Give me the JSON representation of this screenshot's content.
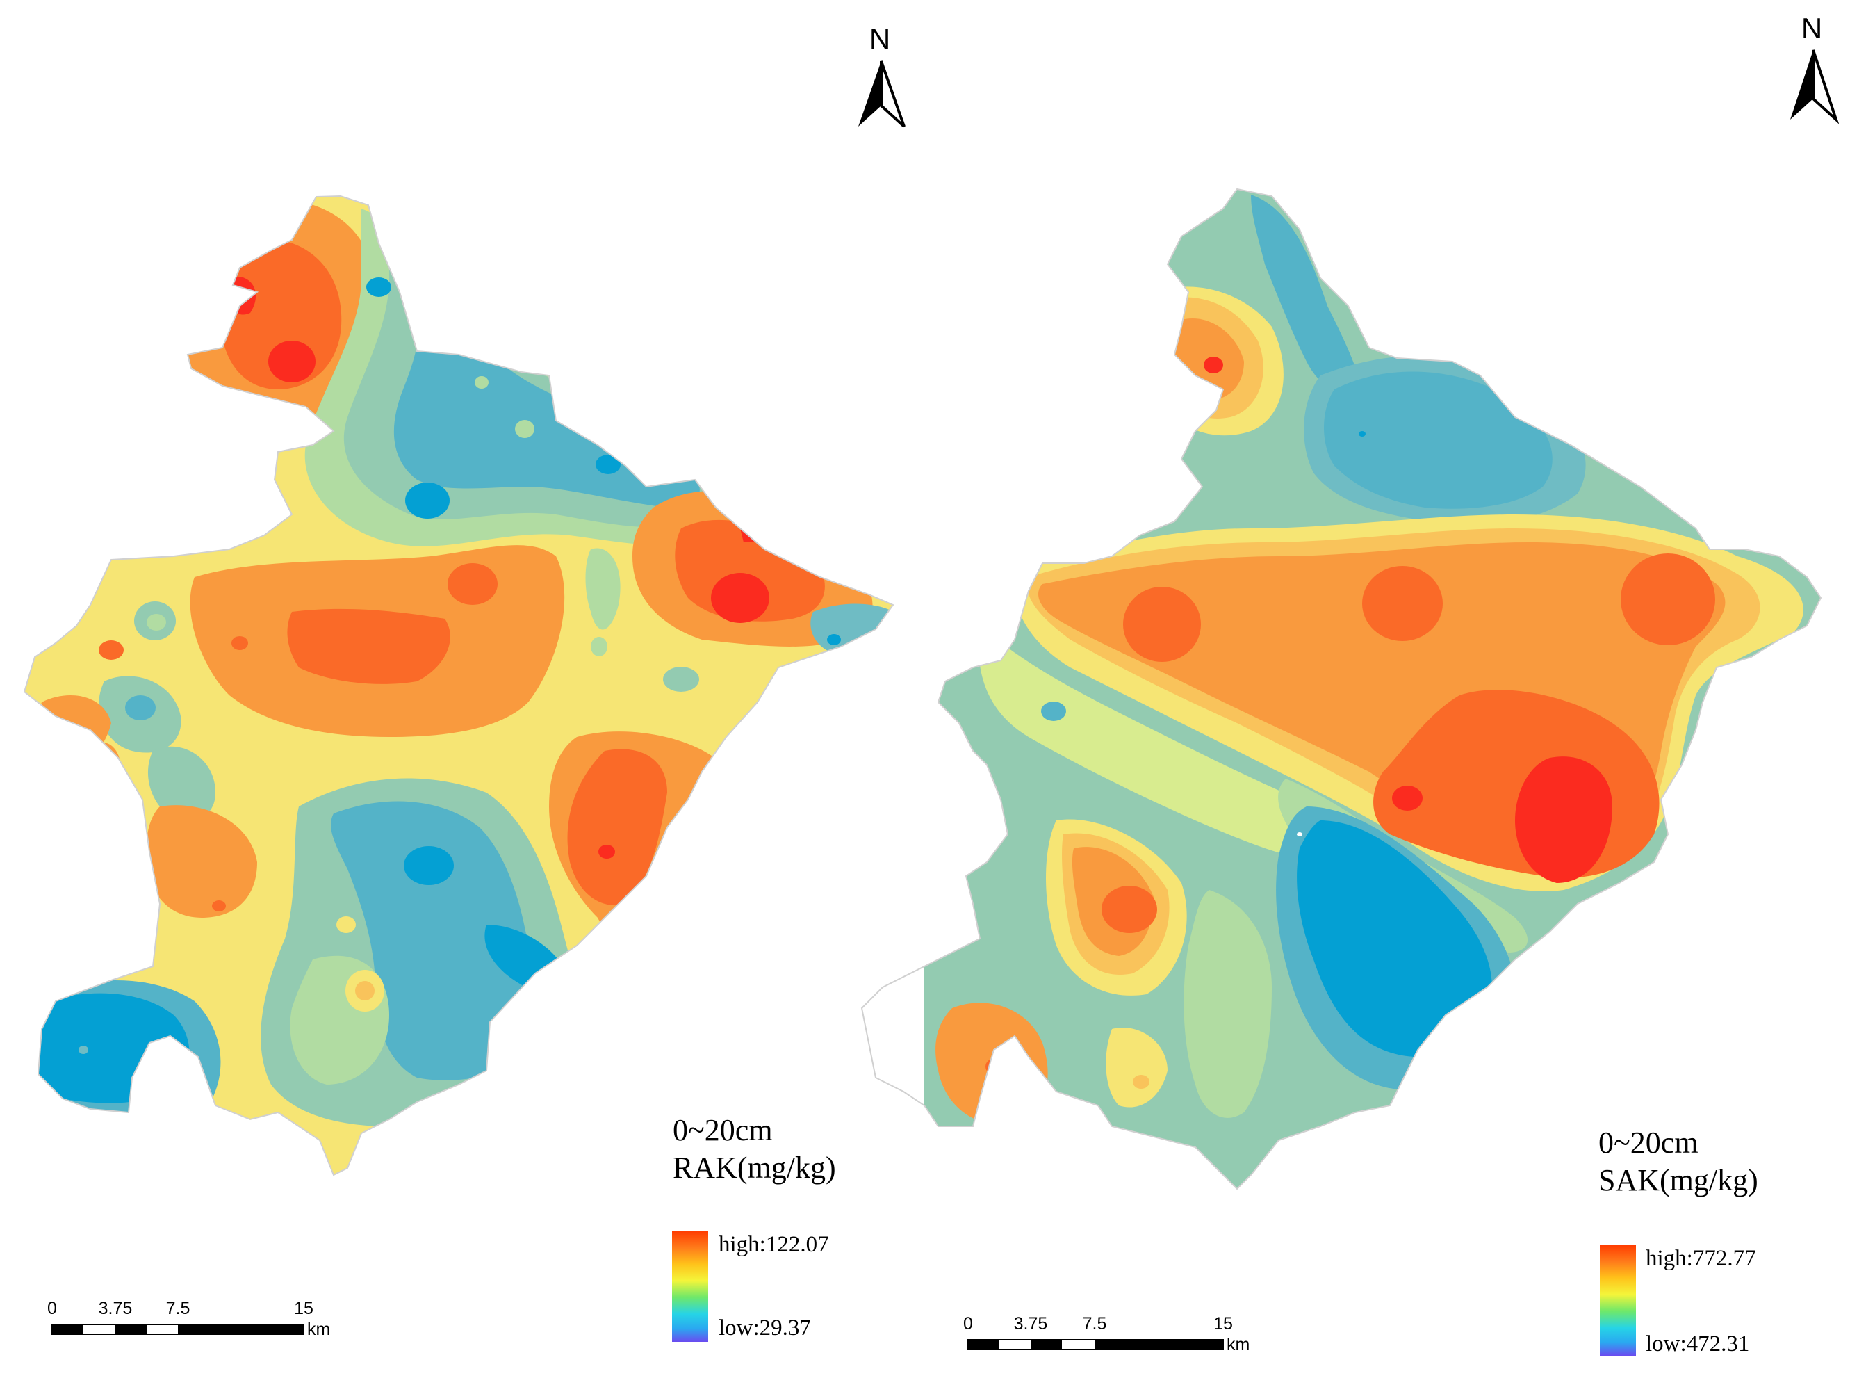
{
  "maps": [
    {
      "id": "rak",
      "north_label": "N",
      "depth_label": "0~20cm",
      "variable_label": "RAK(mg/kg)",
      "legend_high": "high:122.07",
      "legend_low": "low:29.37",
      "scale_ticks": [
        "0",
        "3.75",
        "7.5",
        "15"
      ],
      "scale_unit": "km"
    },
    {
      "id": "sak",
      "north_label": "N",
      "depth_label": "0~20cm",
      "variable_label": "SAK(mg/kg)",
      "legend_high": "high:772.77",
      "legend_low": "low:472.31",
      "scale_ticks": [
        "0",
        "3.75",
        "7.5",
        "15"
      ],
      "scale_unit": "km"
    }
  ],
  "ramp_colors": [
    "#ff3a00",
    "#ff7a1a",
    "#ffc21a",
    "#f4f53a",
    "#6ee86a",
    "#26d4e6",
    "#2aa8f0",
    "#6a4cf0"
  ],
  "zone_colors": {
    "red": "#fb2b1f",
    "red_orange": "#fa6a28",
    "orange": "#f99a3e",
    "light_orange": "#f9c35b",
    "yellow": "#f6e574",
    "pale_green": "#d8ec8f",
    "sage": "#b1dca2",
    "teal_green": "#93cbb1",
    "light_teal": "#6fbcc4",
    "teal": "#54b3c8",
    "blue": "#04a0d3"
  }
}
